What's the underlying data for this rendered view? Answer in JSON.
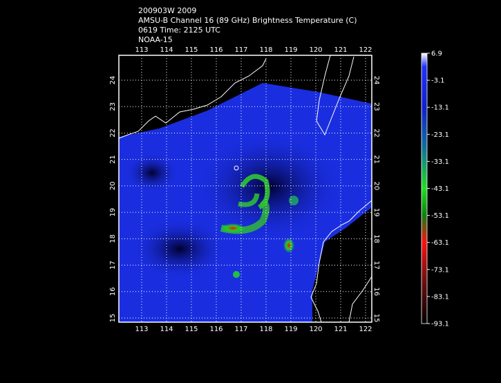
{
  "map": {
    "title_lines": [
      "200903W 2009",
      "AMSU-B Channel 16 (89 GHz) Brightness Temperature (C)",
      "0619 Time: 2125 UTC",
      "NOAA-15"
    ],
    "lon_ticks": [
      113,
      114,
      115,
      116,
      117,
      118,
      119,
      120,
      121,
      122
    ],
    "lat_ticks": [
      15,
      16,
      17,
      18,
      19,
      20,
      21,
      22,
      23,
      24
    ],
    "colorbar_labels": [
      6.9,
      -3.1,
      -13.1,
      -23.1,
      -33.1,
      -43.1,
      -53.1,
      -63.1,
      -73.1,
      -83.1,
      -93.1
    ]
  }
}
